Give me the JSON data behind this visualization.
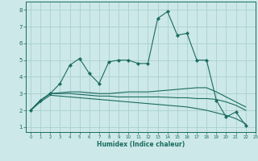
{
  "title": "",
  "xlabel": "Humidex (Indice chaleur)",
  "ylabel": "",
  "bg_color": "#cce8e8",
  "grid_color": "#aad0d0",
  "line_color": "#1a6b60",
  "xlim": [
    -0.5,
    23
  ],
  "ylim": [
    0.7,
    8.5
  ],
  "yticks": [
    1,
    2,
    3,
    4,
    5,
    6,
    7,
    8
  ],
  "xticks": [
    0,
    1,
    2,
    3,
    4,
    5,
    6,
    7,
    8,
    9,
    10,
    11,
    12,
    13,
    14,
    15,
    16,
    17,
    18,
    19,
    20,
    21,
    22,
    23
  ],
  "series": [
    {
      "x": [
        0,
        1,
        2,
        3,
        4,
        5,
        6,
        7,
        8,
        9,
        10,
        11,
        12,
        13,
        14,
        15,
        16,
        17,
        18,
        19,
        20,
        21,
        22
      ],
      "y": [
        2.0,
        2.6,
        3.0,
        3.6,
        4.7,
        5.1,
        4.2,
        3.6,
        4.9,
        5.0,
        5.0,
        4.8,
        4.8,
        7.5,
        7.9,
        6.5,
        6.6,
        5.0,
        5.0,
        2.6,
        1.6,
        1.9,
        1.1
      ],
      "has_markers": true
    },
    {
      "x": [
        0,
        1,
        2,
        3,
        4,
        5,
        6,
        7,
        8,
        9,
        10,
        11,
        12,
        13,
        14,
        15,
        16,
        17,
        18,
        19,
        20,
        21,
        22
      ],
      "y": [
        2.0,
        2.6,
        3.0,
        3.05,
        3.1,
        3.1,
        3.05,
        3.0,
        3.0,
        3.05,
        3.1,
        3.1,
        3.1,
        3.15,
        3.2,
        3.25,
        3.3,
        3.35,
        3.35,
        3.1,
        2.8,
        2.5,
        2.2
      ],
      "has_markers": false
    },
    {
      "x": [
        0,
        1,
        2,
        3,
        4,
        5,
        6,
        7,
        8,
        9,
        10,
        11,
        12,
        13,
        14,
        15,
        16,
        17,
        18,
        19,
        20,
        21,
        22
      ],
      "y": [
        2.0,
        2.6,
        3.0,
        3.0,
        3.0,
        2.95,
        2.9,
        2.85,
        2.85,
        2.8,
        2.8,
        2.8,
        2.8,
        2.8,
        2.78,
        2.75,
        2.75,
        2.7,
        2.7,
        2.65,
        2.5,
        2.3,
        2.0
      ],
      "has_markers": false
    },
    {
      "x": [
        0,
        1,
        2,
        3,
        4,
        5,
        6,
        7,
        8,
        9,
        10,
        11,
        12,
        13,
        14,
        15,
        16,
        17,
        18,
        19,
        20,
        21,
        22
      ],
      "y": [
        2.0,
        2.5,
        2.9,
        2.85,
        2.8,
        2.75,
        2.7,
        2.65,
        2.6,
        2.55,
        2.5,
        2.45,
        2.4,
        2.35,
        2.3,
        2.25,
        2.2,
        2.1,
        2.0,
        1.85,
        1.7,
        1.5,
        1.2
      ],
      "has_markers": false
    }
  ]
}
